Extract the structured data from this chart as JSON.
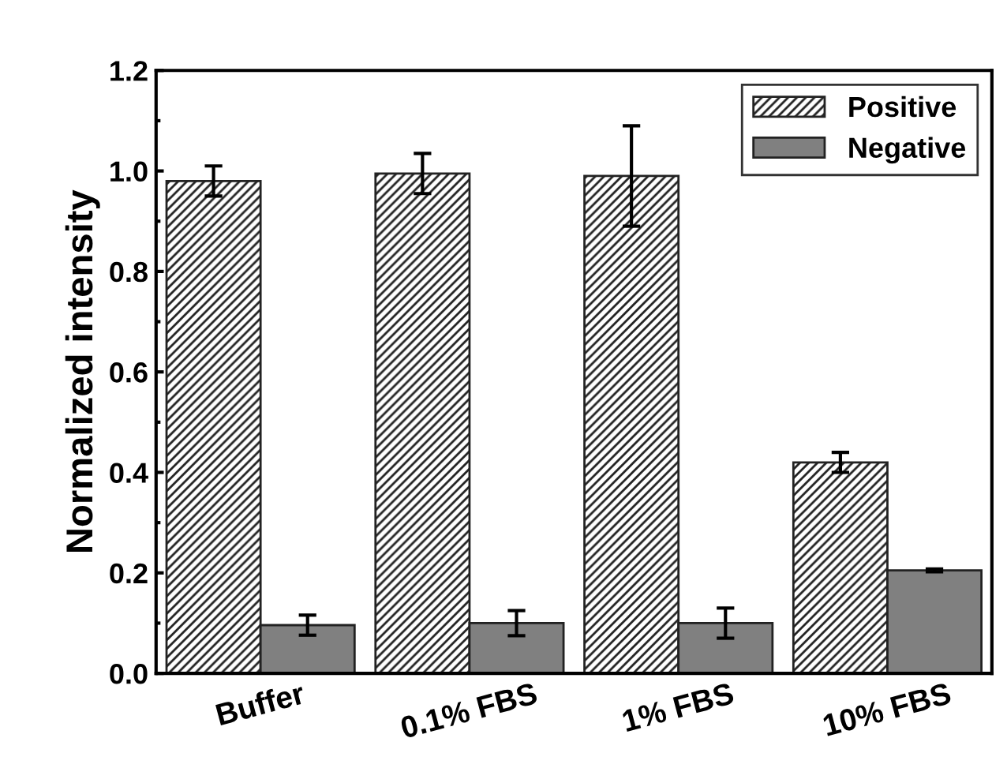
{
  "chart_data": {
    "type": "bar",
    "ylabel": "Normalized intensity",
    "categories": [
      "Buffer",
      "0.1% FBS",
      "1% FBS",
      "10% FBS"
    ],
    "series": [
      {
        "name": "Positive",
        "color": "#222222",
        "values": [
          0.98,
          0.995,
          0.99,
          0.42
        ],
        "errors": [
          0.03,
          0.04,
          0.1,
          0.02
        ]
      },
      {
        "name": "Negative",
        "color": "#808080",
        "values": [
          0.096,
          0.1,
          0.1,
          0.205
        ],
        "errors": [
          0.02,
          0.025,
          0.03,
          0.003
        ]
      }
    ],
    "ylim": [
      0,
      1.2
    ],
    "yticks": [
      {
        "value": 0,
        "label": "0.0"
      },
      0.2,
      0.4,
      0.6,
      0.8,
      {
        "value": 1,
        "label": "1.0"
      },
      1.2
    ],
    "grid": false,
    "legend": "top right"
  }
}
